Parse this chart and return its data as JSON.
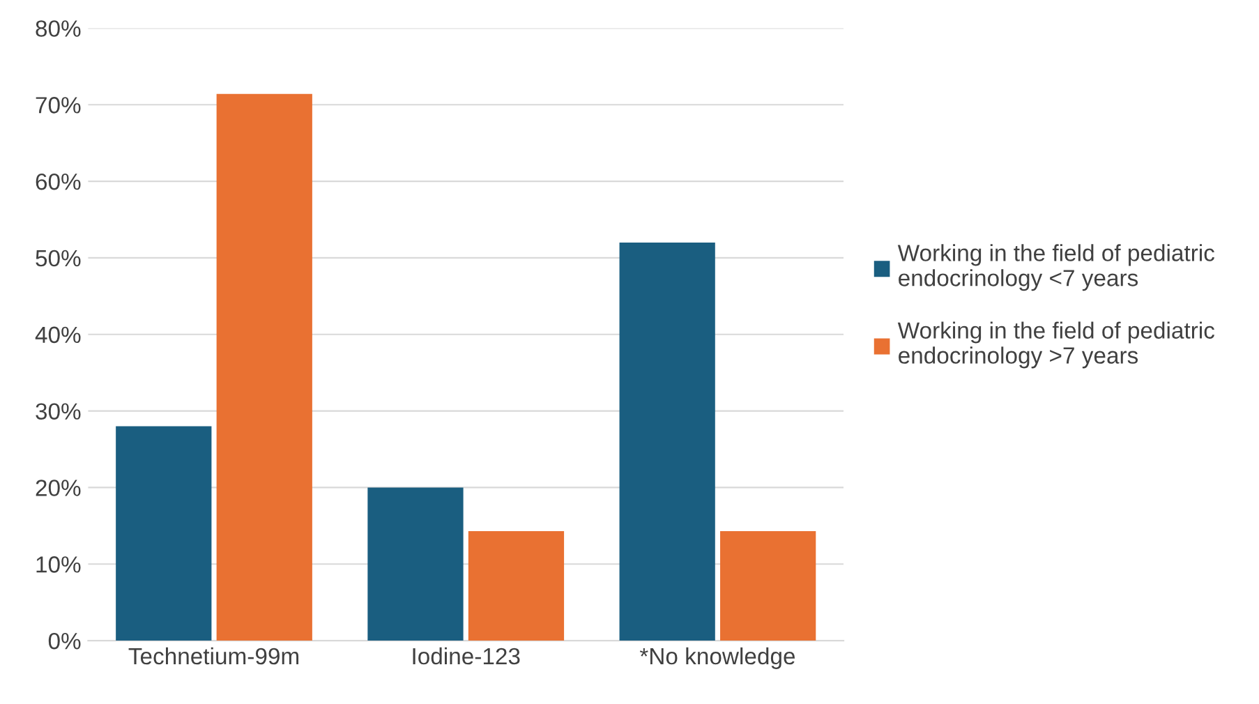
{
  "chart_data": {
    "type": "bar",
    "categories": [
      "Technetium-99m",
      "Iodine-123",
      "*No knowledge"
    ],
    "series": [
      {
        "name": "Working in the field of pediatric endocrinology <7 years",
        "color": "#1a5e80",
        "values": [
          28,
          20,
          52
        ]
      },
      {
        "name": "Working in the field of pediatric endocrinology >7 years",
        "color": "#e97132",
        "values": [
          71.4,
          14.3,
          14.3
        ]
      }
    ],
    "ylim": [
      0,
      80
    ],
    "yticks": [
      {
        "value": 0,
        "label": "0%"
      },
      {
        "value": 10,
        "label": "10%"
      },
      {
        "value": 20,
        "label": "20%"
      },
      {
        "value": 30,
        "label": "30%"
      },
      {
        "value": 40,
        "label": "40%"
      },
      {
        "value": 50,
        "label": "50%"
      },
      {
        "value": 60,
        "label": "60%"
      },
      {
        "value": 70,
        "label": "70%"
      },
      {
        "value": 80,
        "label": "80%"
      }
    ],
    "grid": "y",
    "legend": "right"
  }
}
